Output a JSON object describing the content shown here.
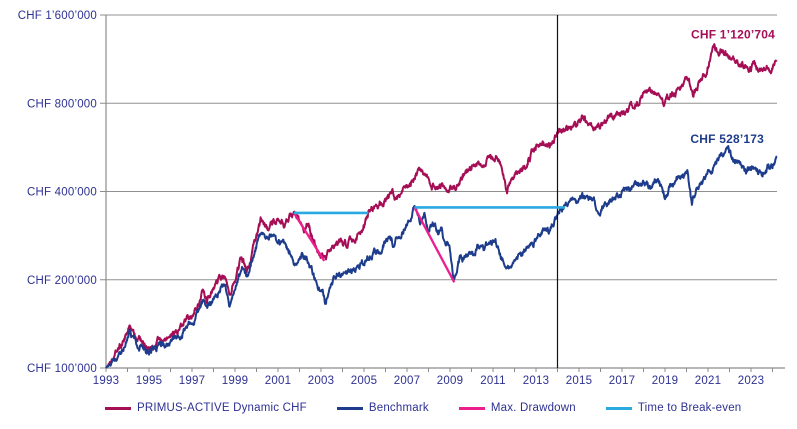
{
  "colors": {
    "background": "#FFFFFF",
    "axis_line": "#8C8C8C",
    "grid_line": "#909090",
    "tick_text": "#2E3192",
    "vertical_line": "#111111",
    "primary_series": "#A50D55",
    "benchmark_series": "#1E3C8C",
    "max_drawdown": "#EC1E8E",
    "break_even": "#2BA9E1"
  },
  "legend": {
    "items": [
      {
        "label": "PRIMUS-ACTIVE Dynamic CHF",
        "color": "#A50D55",
        "name": "legend-item-primus"
      },
      {
        "label": "Benchmark",
        "color": "#1E3C8C",
        "name": "legend-item-benchmark"
      },
      {
        "label": "Max. Drawdown",
        "color": "#EC1E8E",
        "name": "legend-item-max-drawdown"
      },
      {
        "label": "Time to Break-even",
        "color": "#2BA9E1",
        "name": "legend-item-break-even"
      }
    ]
  },
  "chart_data": {
    "type": "line",
    "title": "",
    "x_axis": {
      "range": [
        1993,
        2024.3
      ],
      "labeled_years": [
        1993,
        1995,
        1997,
        1999,
        2001,
        2003,
        2005,
        2007,
        2009,
        2011,
        2013,
        2015,
        2017,
        2019,
        2021,
        2023
      ],
      "minor_tick_every_year": true
    },
    "y_axis": {
      "scale": "log",
      "range": [
        100000,
        1600000
      ],
      "ticks": [
        {
          "label": "CHF 1’600’000",
          "value": 1600000
        },
        {
          "label": "CHF 800’000",
          "value": 800000
        },
        {
          "label": "CHF 400’000",
          "value": 400000
        },
        {
          "label": "CHF 200’000",
          "value": 200000
        },
        {
          "label": "CHF 100’000",
          "value": 100000
        }
      ]
    },
    "series": [
      {
        "name": "PRIMUS-ACTIVE Dynamic CHF",
        "color": "#A50D55",
        "end_label": "CHF 1’120’704",
        "end_value": 1120704,
        "points": [
          [
            1993.0,
            100000
          ],
          [
            1993.3,
            108000
          ],
          [
            1993.6,
            115000
          ],
          [
            1993.9,
            127000
          ],
          [
            1994.1,
            138000
          ],
          [
            1994.4,
            125000
          ],
          [
            1994.7,
            121000
          ],
          [
            1995.0,
            117000
          ],
          [
            1995.3,
            120000
          ],
          [
            1995.6,
            127000
          ],
          [
            1995.9,
            124000
          ],
          [
            1996.2,
            131000
          ],
          [
            1996.6,
            141000
          ],
          [
            1996.9,
            149000
          ],
          [
            1997.2,
            160000
          ],
          [
            1997.5,
            180000
          ],
          [
            1997.7,
            171000
          ],
          [
            1998.0,
            184000
          ],
          [
            1998.3,
            201000
          ],
          [
            1998.55,
            208000
          ],
          [
            1998.75,
            179000
          ],
          [
            1999.0,
            206000
          ],
          [
            1999.3,
            233000
          ],
          [
            1999.55,
            219000
          ],
          [
            1999.8,
            247000
          ],
          [
            2000.0,
            281000
          ],
          [
            2000.2,
            318000
          ],
          [
            2000.45,
            300000
          ],
          [
            2000.7,
            311000
          ],
          [
            2001.0,
            322000
          ],
          [
            2001.3,
            312000
          ],
          [
            2001.55,
            326000
          ],
          [
            2001.74,
            338000
          ],
          [
            2002.0,
            317000
          ],
          [
            2002.2,
            300000
          ],
          [
            2002.4,
            311000
          ],
          [
            2002.6,
            281000
          ],
          [
            2002.85,
            256000
          ],
          [
            2003.15,
            232000
          ],
          [
            2003.4,
            252000
          ],
          [
            2003.7,
            261000
          ],
          [
            2003.95,
            268000
          ],
          [
            2004.2,
            262000
          ],
          [
            2004.5,
            273000
          ],
          [
            2004.8,
            285000
          ],
          [
            2005.0,
            300000
          ],
          [
            2005.2,
            340000
          ],
          [
            2005.5,
            353000
          ],
          [
            2005.8,
            365000
          ],
          [
            2006.1,
            378000
          ],
          [
            2006.3,
            388000
          ],
          [
            2006.5,
            381000
          ],
          [
            2006.8,
            403000
          ],
          [
            2007.1,
            425000
          ],
          [
            2007.4,
            452000
          ],
          [
            2007.6,
            463000
          ],
          [
            2007.9,
            441000
          ],
          [
            2008.1,
            422000
          ],
          [
            2008.4,
            410000
          ],
          [
            2008.6,
            417000
          ],
          [
            2008.8,
            405000
          ],
          [
            2009.0,
            412000
          ],
          [
            2009.3,
            408000
          ],
          [
            2009.6,
            452000
          ],
          [
            2010.0,
            490000
          ],
          [
            2010.3,
            515000
          ],
          [
            2010.6,
            498000
          ],
          [
            2010.9,
            520000
          ],
          [
            2011.1,
            535000
          ],
          [
            2011.4,
            500000
          ],
          [
            2011.65,
            406000
          ],
          [
            2011.9,
            440000
          ],
          [
            2012.2,
            468000
          ],
          [
            2012.5,
            487000
          ],
          [
            2012.8,
            544000
          ],
          [
            2013.1,
            560000
          ],
          [
            2013.4,
            586000
          ],
          [
            2013.65,
            570000
          ],
          [
            2014.0,
            630000
          ],
          [
            2014.4,
            655000
          ],
          [
            2014.8,
            672000
          ],
          [
            2015.2,
            724000
          ],
          [
            2015.5,
            692000
          ],
          [
            2015.8,
            672000
          ],
          [
            2016.1,
            691000
          ],
          [
            2016.5,
            716000
          ],
          [
            2016.8,
            737000
          ],
          [
            2017.2,
            766000
          ],
          [
            2017.6,
            795000
          ],
          [
            2018.0,
            848000
          ],
          [
            2018.4,
            886000
          ],
          [
            2018.7,
            840000
          ],
          [
            2019.0,
            800000
          ],
          [
            2019.4,
            868000
          ],
          [
            2019.8,
            922000
          ],
          [
            2020.1,
            975000
          ],
          [
            2020.3,
            830000
          ],
          [
            2020.6,
            948000
          ],
          [
            2020.9,
            1030000
          ],
          [
            2021.3,
            1230000
          ],
          [
            2021.5,
            1180000
          ],
          [
            2021.7,
            1215000
          ],
          [
            2022.0,
            1160000
          ],
          [
            2022.2,
            1110000
          ],
          [
            2022.45,
            1070000
          ],
          [
            2022.6,
            1100000
          ],
          [
            2022.9,
            1030000
          ],
          [
            2023.1,
            1068000
          ],
          [
            2023.4,
            1050000
          ],
          [
            2023.7,
            1062000
          ],
          [
            2023.9,
            1050000
          ],
          [
            2024.05,
            1090000
          ],
          [
            2024.2,
            1120704
          ]
        ]
      },
      {
        "name": "Benchmark",
        "color": "#1E3C8C",
        "end_label": "CHF 528’173",
        "end_value": 528173,
        "points": [
          [
            1993.0,
            100000
          ],
          [
            1993.3,
            105000
          ],
          [
            1993.6,
            111000
          ],
          [
            1993.9,
            123000
          ],
          [
            1994.1,
            133000
          ],
          [
            1994.4,
            121000
          ],
          [
            1994.7,
            117000
          ],
          [
            1995.0,
            112000
          ],
          [
            1995.3,
            116000
          ],
          [
            1995.6,
            122000
          ],
          [
            1995.9,
            119000
          ],
          [
            1996.2,
            126000
          ],
          [
            1996.6,
            135000
          ],
          [
            1996.9,
            142000
          ],
          [
            1997.2,
            152000
          ],
          [
            1997.5,
            170000
          ],
          [
            1997.7,
            161000
          ],
          [
            1998.0,
            173000
          ],
          [
            1998.3,
            189000
          ],
          [
            1998.55,
            196000
          ],
          [
            1998.75,
            167000
          ],
          [
            1999.0,
            193000
          ],
          [
            1999.3,
            221000
          ],
          [
            1999.55,
            208000
          ],
          [
            1999.8,
            232000
          ],
          [
            2000.0,
            262000
          ],
          [
            2000.2,
            291000
          ],
          [
            2000.45,
            276000
          ],
          [
            2000.7,
            283000
          ],
          [
            2001.0,
            262000
          ],
          [
            2001.3,
            271000
          ],
          [
            2001.6,
            248000
          ],
          [
            2001.8,
            223000
          ],
          [
            2002.1,
            245000
          ],
          [
            2002.35,
            237000
          ],
          [
            2002.55,
            218000
          ],
          [
            2002.8,
            196000
          ],
          [
            2003.0,
            186000
          ],
          [
            2003.2,
            170000
          ],
          [
            2003.5,
            200000
          ],
          [
            2003.8,
            208000
          ],
          [
            2004.1,
            213000
          ],
          [
            2004.4,
            210000
          ],
          [
            2004.7,
            220000
          ],
          [
            2005.0,
            230000
          ],
          [
            2005.3,
            240000
          ],
          [
            2005.7,
            252000
          ],
          [
            2006.0,
            268000
          ],
          [
            2006.2,
            277000
          ],
          [
            2006.4,
            262000
          ],
          [
            2006.7,
            287000
          ],
          [
            2006.9,
            299000
          ],
          [
            2007.1,
            320000
          ],
          [
            2007.35,
            353000
          ],
          [
            2007.6,
            325000
          ],
          [
            2007.8,
            337000
          ],
          [
            2008.0,
            294000
          ],
          [
            2008.2,
            318000
          ],
          [
            2008.45,
            287000
          ],
          [
            2008.6,
            300000
          ],
          [
            2008.75,
            261000
          ],
          [
            2008.9,
            272000
          ],
          [
            2009.0,
            245000
          ],
          [
            2009.2,
            196000
          ],
          [
            2009.45,
            235000
          ],
          [
            2009.7,
            242000
          ],
          [
            2009.9,
            248000
          ],
          [
            2010.1,
            240000
          ],
          [
            2010.35,
            262000
          ],
          [
            2010.55,
            249000
          ],
          [
            2010.8,
            264000
          ],
          [
            2011.0,
            270000
          ],
          [
            2011.25,
            258000
          ],
          [
            2011.45,
            236000
          ],
          [
            2011.65,
            220000
          ],
          [
            2011.8,
            233000
          ],
          [
            2011.95,
            223000
          ],
          [
            2012.2,
            242000
          ],
          [
            2012.45,
            249000
          ],
          [
            2012.7,
            259000
          ],
          [
            2012.95,
            272000
          ],
          [
            2013.15,
            281000
          ],
          [
            2013.45,
            296000
          ],
          [
            2013.6,
            290000
          ],
          [
            2013.85,
            320000
          ],
          [
            2014.0,
            335000
          ],
          [
            2014.35,
            355000
          ],
          [
            2014.7,
            362000
          ],
          [
            2015.0,
            371000
          ],
          [
            2015.3,
            386000
          ],
          [
            2015.55,
            374000
          ],
          [
            2015.8,
            360000
          ],
          [
            2016.0,
            352000
          ],
          [
            2016.3,
            370000
          ],
          [
            2016.6,
            382000
          ],
          [
            2017.0,
            396000
          ],
          [
            2017.4,
            409000
          ],
          [
            2017.8,
            421000
          ],
          [
            2018.0,
            431000
          ],
          [
            2018.2,
            414000
          ],
          [
            2018.5,
            426000
          ],
          [
            2018.75,
            431000
          ],
          [
            2019.0,
            382000
          ],
          [
            2019.3,
            421000
          ],
          [
            2019.7,
            448000
          ],
          [
            2020.05,
            466000
          ],
          [
            2020.25,
            362000
          ],
          [
            2020.5,
            421000
          ],
          [
            2020.8,
            441000
          ],
          [
            2021.1,
            481000
          ],
          [
            2021.45,
            511000
          ],
          [
            2021.7,
            540000
          ],
          [
            2021.95,
            546000
          ],
          [
            2022.2,
            512000
          ],
          [
            2022.5,
            496000
          ],
          [
            2022.75,
            466000
          ],
          [
            2023.0,
            481000
          ],
          [
            2023.25,
            470000
          ],
          [
            2023.5,
            462000
          ],
          [
            2023.75,
            485000
          ],
          [
            2024.0,
            495000
          ],
          [
            2024.2,
            528173
          ]
        ]
      }
    ],
    "annotations": {
      "max_drawdown": {
        "label": "Max. Drawdown",
        "color": "#EC1E8E",
        "segments": [
          {
            "series": "PRIMUS-ACTIVE Dynamic CHF",
            "from": [
              2001.74,
              338000
            ],
            "to": [
              2003.15,
              232000
            ]
          },
          {
            "series": "Benchmark",
            "from": [
              2007.35,
              353000
            ],
            "to": [
              2009.2,
              196000
            ]
          }
        ]
      },
      "time_to_break_even": {
        "label": "Time to Break-even",
        "color": "#2BA9E1",
        "segments": [
          {
            "series": "PRIMUS-ACTIVE Dynamic CHF",
            "value": 338000,
            "from_year": 2001.74,
            "to_year": 2005.2
          },
          {
            "series": "Benchmark",
            "value": 353000,
            "from_year": 2007.35,
            "to_year": 2014.35
          }
        ]
      },
      "vertical_line_year": 2014
    }
  }
}
